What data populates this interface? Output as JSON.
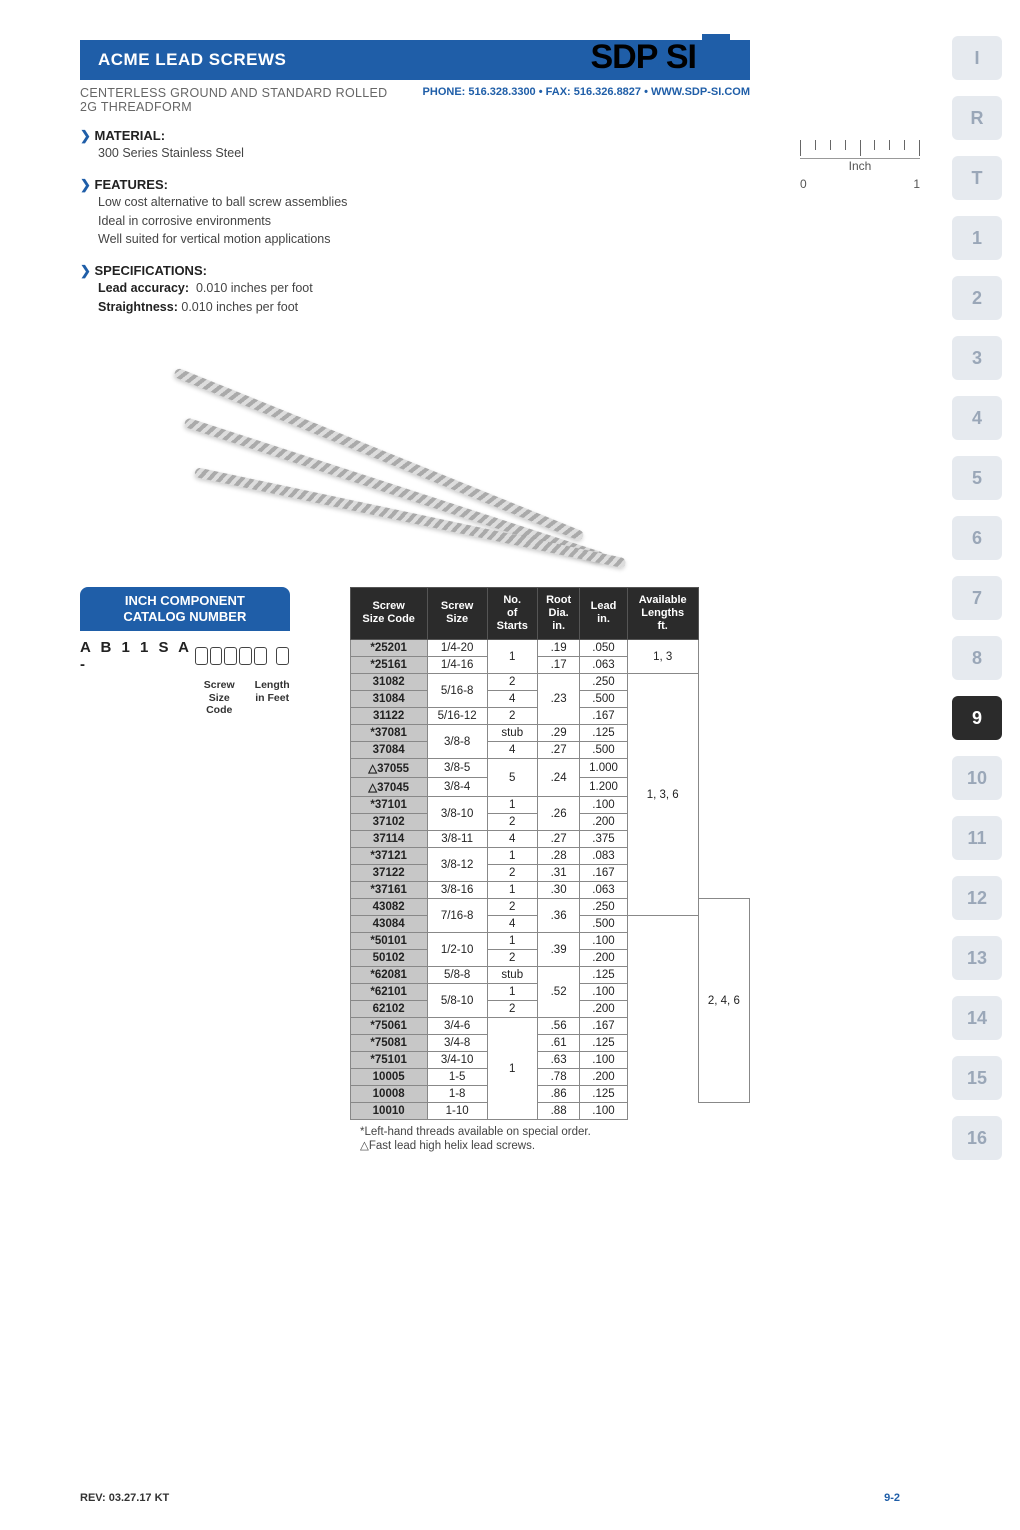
{
  "header": {
    "title": "ACME LEAD SCREWS",
    "logo_main": "SDP",
    "logo_slash": "/",
    "logo_suffix": "SI",
    "sub_left_line1": "CENTERLESS GROUND AND STANDARD ROLLED",
    "sub_left_line2": "2G THREADFORM",
    "sub_right": "PHONE: 516.328.3300 • FAX: 516.326.8827 • WWW.SDP-SI.COM"
  },
  "ruler": {
    "label": "Inch",
    "start": "0",
    "end": "1"
  },
  "sections": {
    "material": {
      "heading": "MATERIAL:",
      "body": "300 Series Stainless Steel"
    },
    "features": {
      "heading": "FEATURES:",
      "lines": [
        "Low cost alternative to ball screw assemblies",
        "Ideal in corrosive environments",
        "Well suited for vertical motion applications"
      ]
    },
    "specs": {
      "heading": "SPECIFICATIONS:",
      "lead_label": "Lead accuracy:",
      "lead_val": "0.010 inches per foot",
      "straight_label": "Straightness:",
      "straight_val": "0.010 inches per foot"
    }
  },
  "catnum": {
    "head_l1": "INCH COMPONENT",
    "head_l2": "CATALOG NUMBER",
    "prefix": "A B 1 1 S A -",
    "label1_l1": "Screw",
    "label1_l2": "Size",
    "label1_l3": "Code",
    "label2_l1": "Length",
    "label2_l2": "in Feet"
  },
  "table": {
    "headers": [
      "Screw\nSize Code",
      "Screw\nSize",
      "No.\nof\nStarts",
      "Root\nDia.\nin.",
      "Lead\nin.",
      "Available\nLengths\nft."
    ],
    "rows": [
      {
        "code": "*25201",
        "size": "1/4-20",
        "starts": "1",
        "_starts_rs": 2,
        "root": ".19",
        "lead": ".050",
        "avail": "1, 3",
        "_avail_rs": 2
      },
      {
        "code": "*25161",
        "size": "1/4-16",
        "root": ".17",
        "lead": ".063"
      },
      {
        "code": "31082",
        "size": "5/16-8",
        "_size_rs": 2,
        "starts": "2",
        "root": ".23",
        "_root_rs": 3,
        "lead": ".250",
        "avail": "1, 3, 6",
        "_avail_rs": 14
      },
      {
        "code": "31084",
        "starts": "4",
        "lead": ".500"
      },
      {
        "code": "31122",
        "size": "5/16-12",
        "starts": "2",
        "lead": ".167"
      },
      {
        "code": "*37081",
        "size": "3/8-8",
        "_size_rs": 2,
        "starts": "stub",
        "root": ".29",
        "lead": ".125"
      },
      {
        "code": "37084",
        "starts": "4",
        "root": ".27",
        "lead": ".500"
      },
      {
        "code": "△37055",
        "size": "3/8-5",
        "starts": "5",
        "_starts_rs": 2,
        "root": ".24",
        "_root_rs": 2,
        "lead": "1.000"
      },
      {
        "code": "△37045",
        "size": "3/8-4",
        "lead": "1.200"
      },
      {
        "code": "*37101",
        "size": "3/8-10",
        "_size_rs": 2,
        "starts": "1",
        "root": ".26",
        "_root_rs": 2,
        "lead": ".100"
      },
      {
        "code": "37102",
        "starts": "2",
        "lead": ".200"
      },
      {
        "code": "37114",
        "size": "3/8-11",
        "starts": "4",
        "root": ".27",
        "lead": ".375"
      },
      {
        "code": "*37121",
        "size": "3/8-12",
        "_size_rs": 2,
        "starts": "1",
        "root": ".28",
        "lead": ".083"
      },
      {
        "code": "37122",
        "starts": "2",
        "root": ".31",
        "lead": ".167"
      },
      {
        "code": "*37161",
        "size": "3/8-16",
        "starts": "1",
        "root": ".30",
        "lead": ".063"
      },
      {
        "code": "43082",
        "size": "7/16-8",
        "_size_rs": 2,
        "starts": "2",
        "root": ".36",
        "_root_rs": 2,
        "lead": ".250",
        "avail": "2, 4, 6",
        "_avail_rs": 12
      },
      {
        "code": "43084",
        "starts": "4",
        "lead": ".500"
      },
      {
        "code": "*50101",
        "size": "1/2-10",
        "_size_rs": 2,
        "starts": "1",
        "root": ".39",
        "_root_rs": 2,
        "lead": ".100"
      },
      {
        "code": "50102",
        "starts": "2",
        "lead": ".200"
      },
      {
        "code": "*62081",
        "size": "5/8-8",
        "starts": "stub",
        "root": ".52",
        "_root_rs": 3,
        "lead": ".125"
      },
      {
        "code": "*62101",
        "size": "5/8-10",
        "_size_rs": 2,
        "starts": "1",
        "lead": ".100"
      },
      {
        "code": "62102",
        "starts": "2",
        "lead": ".200"
      },
      {
        "code": "*75061",
        "size": "3/4-6",
        "starts": "1",
        "_starts_rs": 6,
        "root": ".56",
        "lead": ".167"
      },
      {
        "code": "*75081",
        "size": "3/4-8",
        "root": ".61",
        "lead": ".125"
      },
      {
        "code": "*75101",
        "size": "3/4-10",
        "root": ".63",
        "lead": ".100"
      },
      {
        "code": "10005",
        "size": "1-5",
        "root": ".78",
        "lead": ".200"
      },
      {
        "code": "10008",
        "size": "1-8",
        "root": ".86",
        "lead": ".125"
      },
      {
        "code": "10010",
        "size": "1-10",
        "root": ".88",
        "lead": ".100"
      }
    ]
  },
  "footnotes": {
    "f1": "*Left-hand threads available on special order.",
    "f2": "△Fast lead high helix lead screws."
  },
  "footer": {
    "rev": "REV: 03.27.17  KT",
    "page": "9-2"
  },
  "tabs": [
    "I",
    "R",
    "T",
    "1",
    "2",
    "3",
    "4",
    "5",
    "6",
    "7",
    "8",
    "9",
    "10",
    "11",
    "12",
    "13",
    "14",
    "15",
    "16"
  ],
  "active_tab": "9",
  "colors": {
    "brand_blue": "#1f5ea8",
    "tab_bg": "#e6eaef",
    "tab_fg": "#9aa7b8",
    "tab_active_bg": "#2b2b2b",
    "th_bg": "#2b2b2b",
    "code_bg": "#c7c7c7"
  }
}
